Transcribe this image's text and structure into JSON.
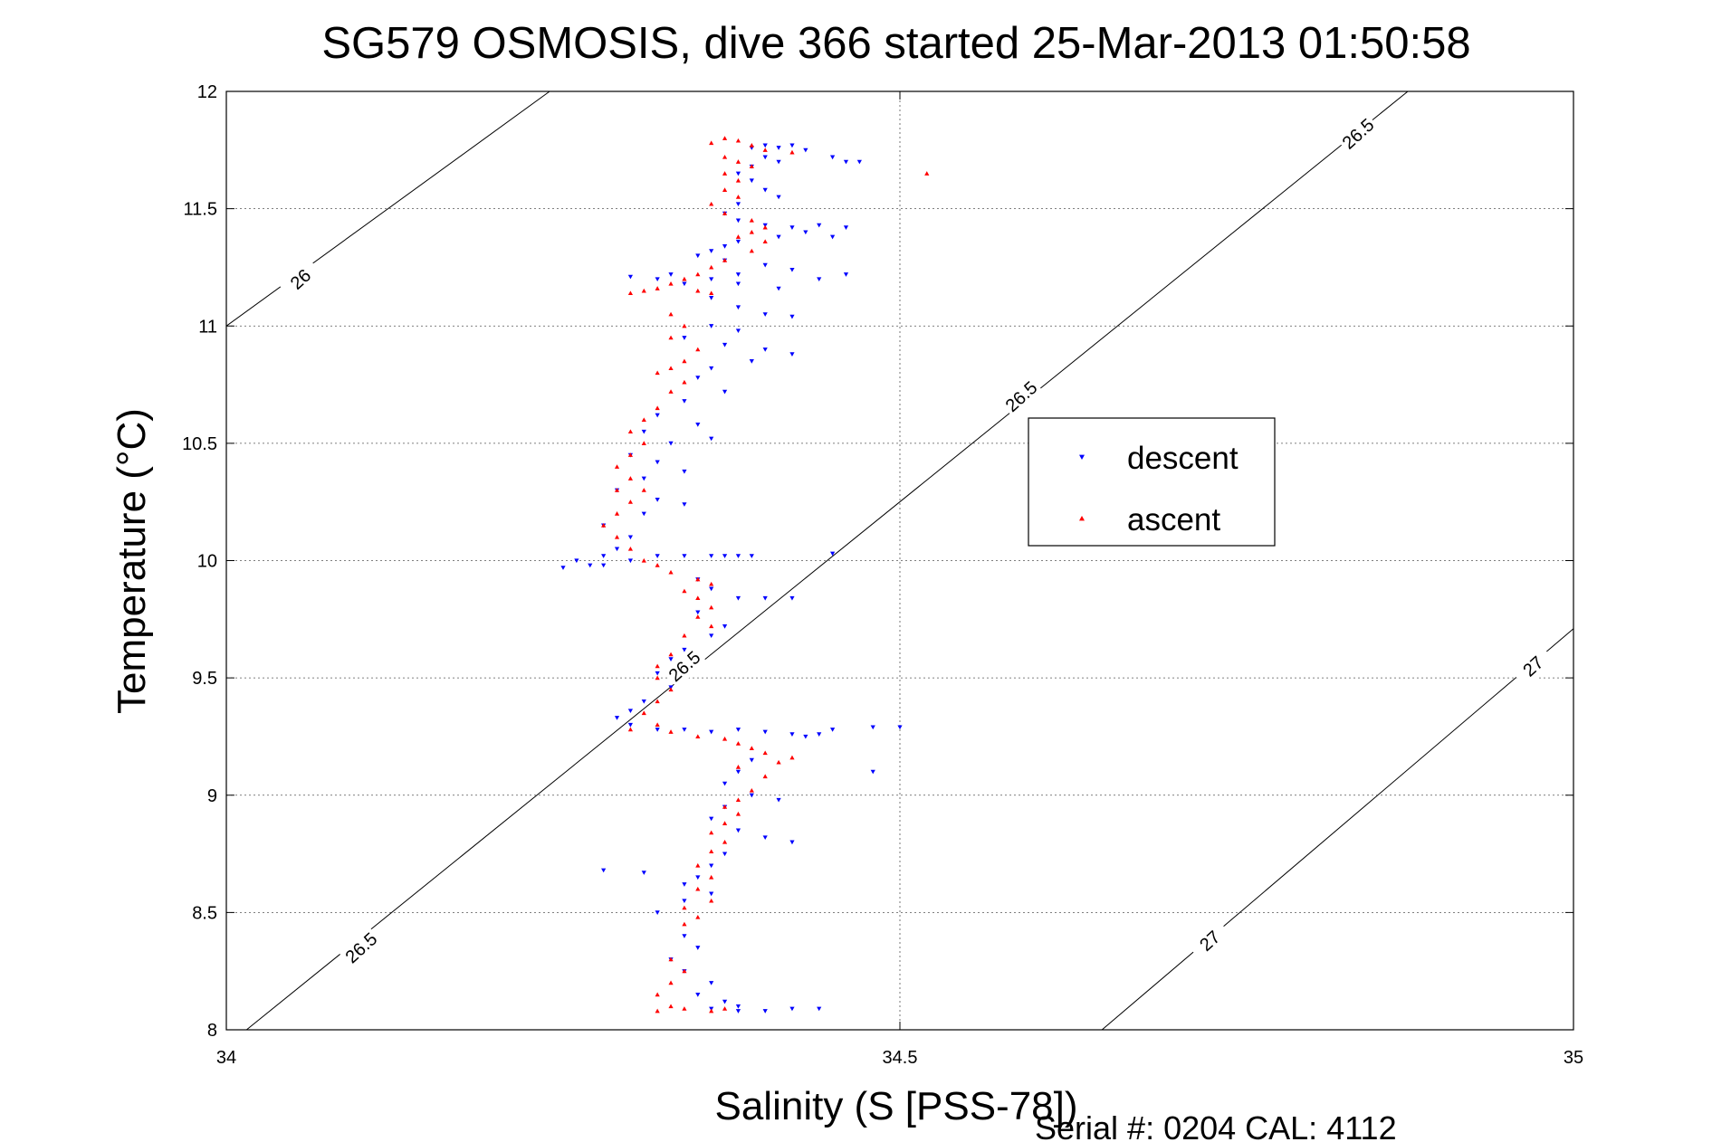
{
  "chart_data": {
    "type": "scatter",
    "title": "SG579 OSMOSIS, dive 366 started 25-Mar-2013 01:50:58",
    "xlabel": "Salinity (S [PSS-78])",
    "ylabel": "Temperature (°C)",
    "xlim": [
      34,
      35
    ],
    "ylim": [
      8,
      12
    ],
    "xticks": [
      "34",
      "34.5",
      "35"
    ],
    "yticks": [
      "8",
      "8.5",
      "9",
      "9.5",
      "10",
      "10.5",
      "11",
      "11.5",
      "12"
    ],
    "grid": true,
    "legend_position": "center-right",
    "footer": "Serial #: 0204  CAL: 4112",
    "colors": {
      "descent": "#0000ff",
      "ascent": "#ff0000"
    },
    "series": [
      {
        "name": "descent",
        "marker": "triangle-down",
        "color": "#0000ff",
        "points": [
          [
            34.39,
            11.76
          ],
          [
            34.4,
            11.77
          ],
          [
            34.41,
            11.76
          ],
          [
            34.42,
            11.77
          ],
          [
            34.43,
            11.75
          ],
          [
            34.45,
            11.72
          ],
          [
            34.46,
            11.7
          ],
          [
            34.47,
            11.7
          ],
          [
            34.4,
            11.72
          ],
          [
            34.41,
            11.7
          ],
          [
            34.39,
            11.68
          ],
          [
            34.38,
            11.65
          ],
          [
            34.39,
            11.62
          ],
          [
            34.4,
            11.58
          ],
          [
            34.41,
            11.55
          ],
          [
            34.38,
            11.52
          ],
          [
            34.37,
            11.48
          ],
          [
            34.38,
            11.45
          ],
          [
            34.4,
            11.43
          ],
          [
            34.42,
            11.42
          ],
          [
            34.43,
            11.4
          ],
          [
            34.44,
            11.43
          ],
          [
            34.46,
            11.42
          ],
          [
            34.45,
            11.38
          ],
          [
            34.41,
            11.38
          ],
          [
            34.38,
            11.36
          ],
          [
            34.37,
            11.34
          ],
          [
            34.36,
            11.32
          ],
          [
            34.35,
            11.3
          ],
          [
            34.37,
            11.28
          ],
          [
            34.4,
            11.26
          ],
          [
            34.42,
            11.24
          ],
          [
            34.38,
            11.22
          ],
          [
            34.36,
            11.2
          ],
          [
            34.34,
            11.18
          ],
          [
            34.33,
            11.22
          ],
          [
            34.38,
            11.18
          ],
          [
            34.41,
            11.16
          ],
          [
            34.44,
            11.2
          ],
          [
            34.46,
            11.22
          ],
          [
            34.32,
            11.2
          ],
          [
            34.3,
            11.21
          ],
          [
            34.36,
            11.12
          ],
          [
            34.38,
            11.08
          ],
          [
            34.4,
            11.05
          ],
          [
            34.42,
            11.04
          ],
          [
            34.36,
            11.0
          ],
          [
            34.38,
            10.98
          ],
          [
            34.34,
            10.95
          ],
          [
            34.37,
            10.92
          ],
          [
            34.4,
            10.9
          ],
          [
            34.42,
            10.88
          ],
          [
            34.39,
            10.85
          ],
          [
            34.36,
            10.82
          ],
          [
            34.35,
            10.78
          ],
          [
            34.37,
            10.72
          ],
          [
            34.34,
            10.68
          ],
          [
            34.32,
            10.62
          ],
          [
            34.35,
            10.58
          ],
          [
            34.31,
            10.55
          ],
          [
            34.33,
            10.5
          ],
          [
            34.36,
            10.52
          ],
          [
            34.3,
            10.45
          ],
          [
            34.32,
            10.42
          ],
          [
            34.34,
            10.38
          ],
          [
            34.31,
            10.35
          ],
          [
            34.29,
            10.3
          ],
          [
            34.32,
            10.26
          ],
          [
            34.34,
            10.24
          ],
          [
            34.31,
            10.2
          ],
          [
            34.28,
            10.15
          ],
          [
            34.3,
            10.1
          ],
          [
            34.29,
            10.05
          ],
          [
            34.28,
            10.02
          ],
          [
            34.26,
            10.0
          ],
          [
            34.27,
            9.98
          ],
          [
            34.25,
            9.97
          ],
          [
            34.28,
            9.98
          ],
          [
            34.3,
            10.0
          ],
          [
            34.32,
            10.02
          ],
          [
            34.34,
            10.02
          ],
          [
            34.36,
            10.02
          ],
          [
            34.37,
            10.02
          ],
          [
            34.38,
            10.02
          ],
          [
            34.39,
            10.02
          ],
          [
            34.45,
            10.03
          ],
          [
            34.35,
            9.92
          ],
          [
            34.36,
            9.88
          ],
          [
            34.38,
            9.84
          ],
          [
            34.4,
            9.84
          ],
          [
            34.42,
            9.84
          ],
          [
            34.35,
            9.78
          ],
          [
            34.37,
            9.72
          ],
          [
            34.36,
            9.68
          ],
          [
            34.34,
            9.62
          ],
          [
            34.33,
            9.58
          ],
          [
            34.32,
            9.52
          ],
          [
            34.33,
            9.46
          ],
          [
            34.31,
            9.4
          ],
          [
            34.3,
            9.36
          ],
          [
            34.29,
            9.33
          ],
          [
            34.3,
            9.3
          ],
          [
            34.32,
            9.28
          ],
          [
            34.34,
            9.28
          ],
          [
            34.36,
            9.27
          ],
          [
            34.38,
            9.28
          ],
          [
            34.4,
            9.27
          ],
          [
            34.42,
            9.26
          ],
          [
            34.43,
            9.25
          ],
          [
            34.45,
            9.28
          ],
          [
            34.48,
            9.29
          ],
          [
            34.5,
            9.29
          ],
          [
            34.44,
            9.26
          ],
          [
            34.48,
            9.1
          ],
          [
            34.39,
            9.15
          ],
          [
            34.38,
            9.1
          ],
          [
            34.37,
            9.05
          ],
          [
            34.39,
            9.0
          ],
          [
            34.41,
            8.98
          ],
          [
            34.37,
            8.95
          ],
          [
            34.36,
            8.9
          ],
          [
            34.38,
            8.85
          ],
          [
            34.4,
            8.82
          ],
          [
            34.42,
            8.8
          ],
          [
            34.37,
            8.75
          ],
          [
            34.36,
            8.7
          ],
          [
            34.35,
            8.65
          ],
          [
            34.34,
            8.62
          ],
          [
            34.36,
            8.58
          ],
          [
            34.34,
            8.55
          ],
          [
            34.32,
            8.5
          ],
          [
            34.28,
            8.68
          ],
          [
            34.31,
            8.67
          ],
          [
            34.34,
            8.4
          ],
          [
            34.35,
            8.35
          ],
          [
            34.33,
            8.3
          ],
          [
            34.34,
            8.25
          ],
          [
            34.36,
            8.2
          ],
          [
            34.35,
            8.15
          ],
          [
            34.37,
            8.12
          ],
          [
            34.38,
            8.1
          ],
          [
            34.4,
            8.08
          ],
          [
            34.42,
            8.09
          ],
          [
            34.44,
            8.09
          ],
          [
            34.36,
            8.09
          ],
          [
            34.38,
            8.08
          ]
        ]
      },
      {
        "name": "ascent",
        "marker": "triangle-up",
        "color": "#ff0000",
        "points": [
          [
            34.37,
            11.8
          ],
          [
            34.38,
            11.79
          ],
          [
            34.36,
            11.78
          ],
          [
            34.39,
            11.77
          ],
          [
            34.4,
            11.75
          ],
          [
            34.42,
            11.74
          ],
          [
            34.37,
            11.72
          ],
          [
            34.38,
            11.7
          ],
          [
            34.39,
            11.68
          ],
          [
            34.37,
            11.65
          ],
          [
            34.38,
            11.62
          ],
          [
            34.37,
            11.58
          ],
          [
            34.38,
            11.55
          ],
          [
            34.36,
            11.52
          ],
          [
            34.37,
            11.48
          ],
          [
            34.39,
            11.45
          ],
          [
            34.4,
            11.42
          ],
          [
            34.39,
            11.4
          ],
          [
            34.38,
            11.38
          ],
          [
            34.4,
            11.36
          ],
          [
            34.39,
            11.32
          ],
          [
            34.37,
            11.28
          ],
          [
            34.36,
            11.25
          ],
          [
            34.35,
            11.22
          ],
          [
            34.34,
            11.2
          ],
          [
            34.33,
            11.18
          ],
          [
            34.32,
            11.16
          ],
          [
            34.31,
            11.15
          ],
          [
            34.35,
            11.15
          ],
          [
            34.36,
            11.14
          ],
          [
            34.3,
            11.14
          ],
          [
            34.52,
            11.65
          ],
          [
            34.33,
            11.05
          ],
          [
            34.34,
            11.0
          ],
          [
            34.33,
            10.95
          ],
          [
            34.35,
            10.9
          ],
          [
            34.34,
            10.85
          ],
          [
            34.33,
            10.82
          ],
          [
            34.32,
            10.8
          ],
          [
            34.34,
            10.76
          ],
          [
            34.33,
            10.72
          ],
          [
            34.32,
            10.65
          ],
          [
            34.31,
            10.6
          ],
          [
            34.3,
            10.55
          ],
          [
            34.31,
            10.5
          ],
          [
            34.3,
            10.45
          ],
          [
            34.29,
            10.4
          ],
          [
            34.3,
            10.35
          ],
          [
            34.29,
            10.3
          ],
          [
            34.31,
            10.3
          ],
          [
            34.3,
            10.25
          ],
          [
            34.29,
            10.2
          ],
          [
            34.28,
            10.15
          ],
          [
            34.29,
            10.1
          ],
          [
            34.3,
            10.05
          ],
          [
            34.31,
            10.0
          ],
          [
            34.32,
            9.98
          ],
          [
            34.33,
            9.95
          ],
          [
            34.35,
            9.92
          ],
          [
            34.36,
            9.9
          ],
          [
            34.34,
            9.87
          ],
          [
            34.35,
            9.84
          ],
          [
            34.36,
            9.8
          ],
          [
            34.35,
            9.76
          ],
          [
            34.36,
            9.72
          ],
          [
            34.34,
            9.68
          ],
          [
            34.33,
            9.6
          ],
          [
            34.32,
            9.55
          ],
          [
            34.32,
            9.5
          ],
          [
            34.33,
            9.45
          ],
          [
            34.32,
            9.4
          ],
          [
            34.31,
            9.35
          ],
          [
            34.32,
            9.3
          ],
          [
            34.3,
            9.28
          ],
          [
            34.33,
            9.27
          ],
          [
            34.35,
            9.25
          ],
          [
            34.37,
            9.24
          ],
          [
            34.38,
            9.22
          ],
          [
            34.39,
            9.2
          ],
          [
            34.4,
            9.18
          ],
          [
            34.42,
            9.16
          ],
          [
            34.41,
            9.14
          ],
          [
            34.38,
            9.12
          ],
          [
            34.4,
            9.08
          ],
          [
            34.39,
            9.02
          ],
          [
            34.38,
            8.98
          ],
          [
            34.37,
            8.95
          ],
          [
            34.38,
            8.92
          ],
          [
            34.37,
            8.88
          ],
          [
            34.36,
            8.84
          ],
          [
            34.37,
            8.8
          ],
          [
            34.36,
            8.76
          ],
          [
            34.35,
            8.7
          ],
          [
            34.36,
            8.65
          ],
          [
            34.35,
            8.6
          ],
          [
            34.36,
            8.55
          ],
          [
            34.34,
            8.52
          ],
          [
            34.35,
            8.48
          ],
          [
            34.34,
            8.45
          ],
          [
            34.33,
            8.3
          ],
          [
            34.34,
            8.25
          ],
          [
            34.33,
            8.2
          ],
          [
            34.32,
            8.15
          ],
          [
            34.33,
            8.1
          ],
          [
            34.32,
            8.08
          ],
          [
            34.34,
            8.09
          ],
          [
            34.36,
            8.08
          ],
          [
            34.37,
            8.09
          ]
        ]
      }
    ],
    "contours": [
      {
        "level": "26",
        "segments": [
          [
            [
              34.0,
              11.0
            ],
            [
              34.24,
              12.0
            ]
          ]
        ]
      },
      {
        "level": "26.5",
        "segments": [
          [
            [
              34.015,
              8.0
            ],
            [
              34.877,
              12.0
            ]
          ]
        ]
      },
      {
        "level": "27",
        "segments": [
          [
            [
              34.65,
              8.0
            ],
            [
              35.0,
              9.71
            ]
          ]
        ]
      }
    ],
    "contour_labels": [
      {
        "text": "26",
        "x": 34.055,
        "y": 11.2
      },
      {
        "text": "26.5",
        "x": 34.1,
        "y": 8.35
      },
      {
        "text": "26.5",
        "x": 34.34,
        "y": 9.55
      },
      {
        "text": "26.5",
        "x": 34.59,
        "y": 10.7
      },
      {
        "text": "26.5",
        "x": 34.84,
        "y": 11.82
      },
      {
        "text": "27",
        "x": 34.73,
        "y": 8.38
      },
      {
        "text": "27",
        "x": 34.97,
        "y": 9.55
      }
    ]
  }
}
